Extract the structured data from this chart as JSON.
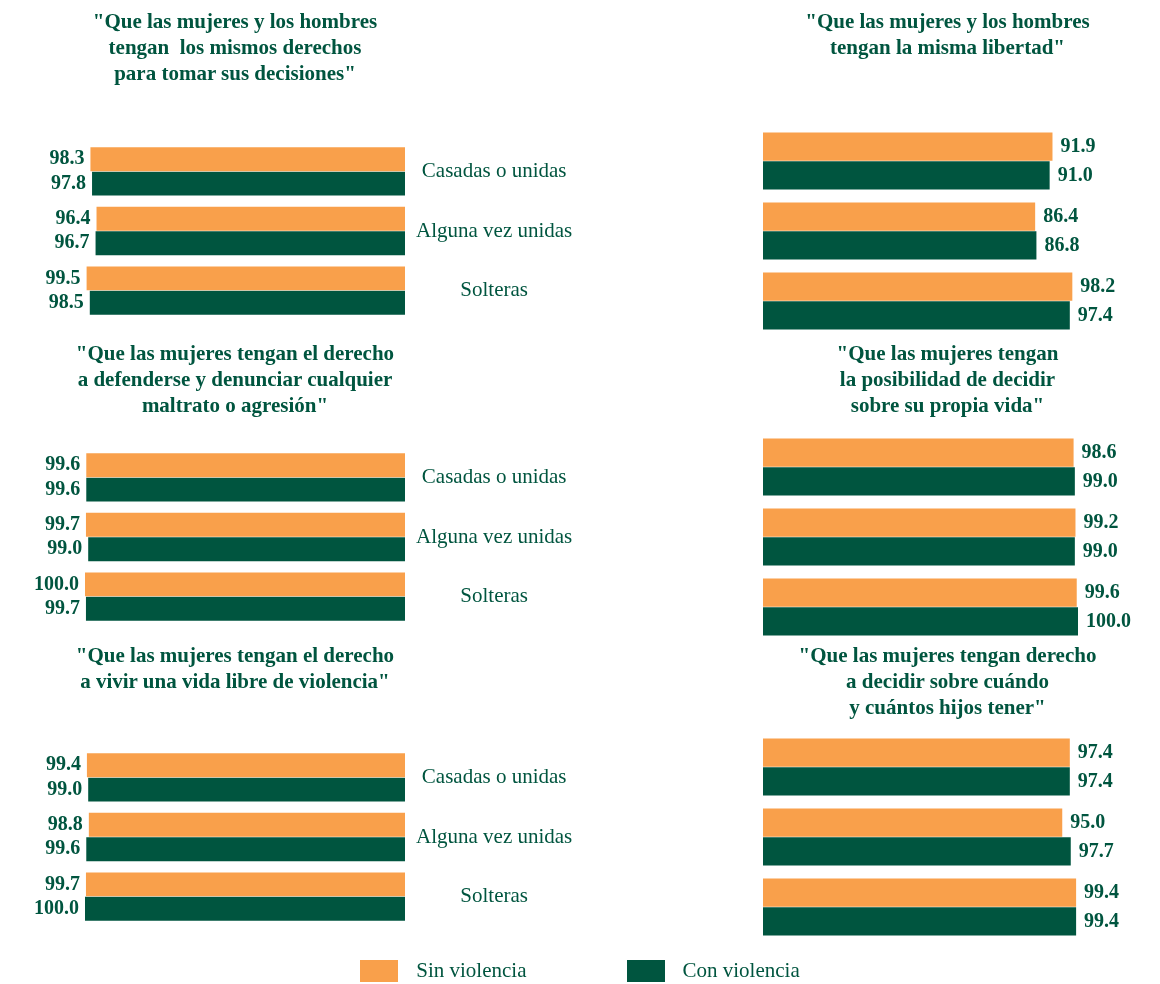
{
  "chart_data": [
    {
      "type": "bar",
      "orientation": "horizontal",
      "title": "\"Que las mujeres y los hombres\ntengan  los mismos derechos\npara tomar sus decisiones\"",
      "categories": [
        "Casadas o unidas",
        "Alguna vez unidas",
        "Solteras"
      ],
      "xlim": [
        100,
        0
      ],
      "tick_labels": "y",
      "legend": "bottom",
      "series": [
        {
          "name": "Sin violencia",
          "color": "#f9a04b",
          "values": [
            98.3,
            96.4,
            99.5
          ],
          "value_labels": [
            "98.3",
            "96.4",
            "99.5"
          ]
        },
        {
          "name": "Con violencia",
          "color": "#00553f",
          "values": [
            97.8,
            96.7,
            98.5
          ],
          "value_labels": [
            "97.8",
            "96.7",
            "98.5"
          ]
        }
      ]
    },
    {
      "type": "bar",
      "orientation": "horizontal",
      "title": "\"Que las mujeres y los hombres\ntengan la misma libertad\"",
      "categories": [
        null,
        null,
        null
      ],
      "tick_labels": false,
      "series": [
        {
          "color": "#f9a04b",
          "values": [
            91.9,
            86.4,
            98.2
          ],
          "value_labels": [
            "91.9",
            "86.4",
            "98.2"
          ]
        },
        {
          "color": "#00553f",
          "values": [
            91.0,
            86.8,
            97.4
          ],
          "value_labels": [
            "91.0",
            "86.8",
            "97.4"
          ]
        }
      ]
    },
    {
      "type": "bar",
      "orientation": "horizontal",
      "title": "\"Que las mujeres tengan el derecho\na defenderse y denunciar cualquier\nmaltrato o agresión\"",
      "categories": [
        "Casadas o unidas",
        "Alguna vez unidas",
        "Solteras"
      ],
      "xlim": [
        100,
        0
      ],
      "tick_labels": "y",
      "series": [
        {
          "color": "#f9a04b",
          "values": [
            99.6,
            99.7,
            100.0
          ],
          "value_labels": [
            "99.6",
            "99.7",
            "100.0"
          ]
        },
        {
          "color": "#00553f",
          "values": [
            99.6,
            99.0,
            99.7
          ],
          "value_labels": [
            "99.6",
            "99.0",
            "99.7"
          ]
        }
      ]
    },
    {
      "type": "bar",
      "orientation": "horizontal",
      "title": "\"Que las mujeres tengan\nla posibilidad de decidir\nsobre su propia vida\"",
      "categories": [
        null,
        null,
        null
      ],
      "tick_labels": false,
      "series": [
        {
          "color": "#f9a04b",
          "values": [
            98.6,
            99.2,
            99.6
          ],
          "value_labels": [
            "98.6",
            "99.2",
            "99.6"
          ]
        },
        {
          "color": "#00553f",
          "values": [
            99.0,
            99.0,
            100.0
          ],
          "value_labels": [
            "99.0",
            "99.0",
            "100.0"
          ]
        }
      ]
    },
    {
      "type": "bar",
      "orientation": "horizontal",
      "title": "\"Que las mujeres tengan el derecho\na vivir una vida libre de violencia\"",
      "categories": [
        "Casadas o unidas",
        "Alguna vez unidas",
        "Solteras"
      ],
      "xlim": [
        100,
        0
      ],
      "tick_labels": "y",
      "series": [
        {
          "color": "#f9a04b",
          "values": [
            99.4,
            98.8,
            99.7
          ],
          "value_labels": [
            "99.4",
            "98.8",
            "99.7"
          ]
        },
        {
          "color": "#00553f",
          "values": [
            99.0,
            99.6,
            100.0
          ],
          "value_labels": [
            "99.0",
            "99.6",
            "100.0"
          ]
        }
      ]
    },
    {
      "type": "bar",
      "orientation": "horizontal",
      "title": "\"Que las mujeres tengan derecho\na decidir sobre cuándo\ny cuántos hijos tener\"",
      "categories": [
        null,
        null,
        null
      ],
      "tick_labels": false,
      "series": [
        {
          "color": "#f9a04b",
          "values": [
            97.4,
            95.0,
            99.4
          ],
          "value_labels": [
            "97.4",
            "95.0",
            "99.4"
          ]
        },
        {
          "color": "#00553f",
          "values": [
            97.4,
            97.7,
            99.4
          ],
          "value_labels": [
            "97.4",
            "97.7",
            "99.4"
          ]
        }
      ]
    }
  ]
}
